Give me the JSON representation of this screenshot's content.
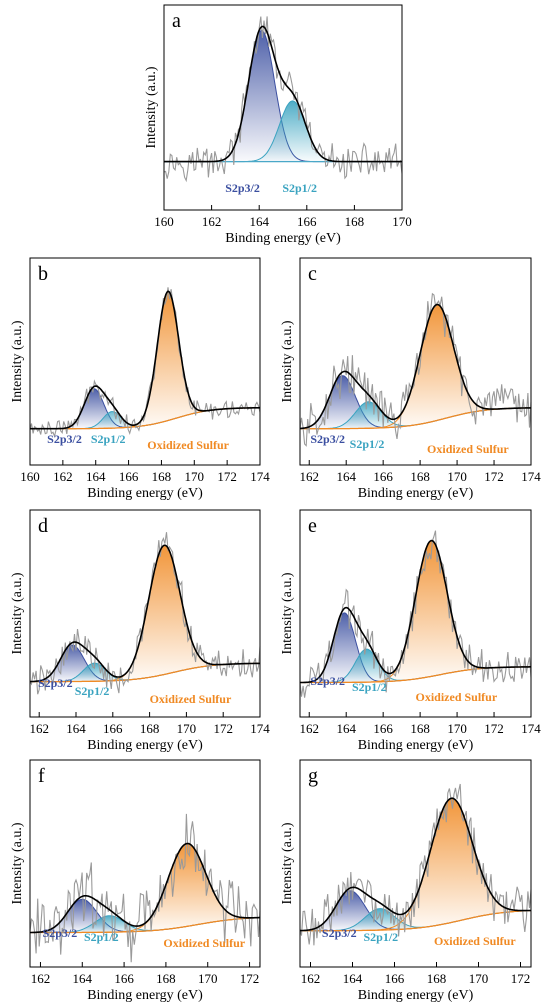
{
  "colors": {
    "raw": "#9a9a9a",
    "envelope": "#000000",
    "s2p32": "#3b4fa0",
    "s2p12": "#3aa3c0",
    "oxidized": "#f08a24",
    "baseline": "#4aa8c8"
  },
  "chart_data": [
    {
      "type": "line",
      "panel": "a",
      "xlabel": "Binding energy (eV)",
      "ylabel": "Intensity (a.u.)",
      "xlim": [
        160,
        170
      ],
      "xticks": [
        160,
        162,
        164,
        166,
        168,
        170
      ],
      "noise": 0.09,
      "baseline": 0.12,
      "series": [
        {
          "name": "S2p3/2",
          "center": 164.1,
          "height": 0.8,
          "width": 0.55
        },
        {
          "name": "S2p1/2",
          "center": 165.4,
          "height": 0.37,
          "width": 0.55
        }
      ],
      "labels": {
        "s2p32": "S2p3/2",
        "s2p12": "S2p1/2"
      }
    },
    {
      "type": "line",
      "panel": "b",
      "xlabel": "Binding energy (eV)",
      "ylabel": "Intensity (a.u.)",
      "xlim": [
        160,
        174
      ],
      "xticks": [
        160,
        162,
        164,
        166,
        168,
        170,
        172,
        174
      ],
      "noise": 0.05,
      "baseline": 0.08,
      "series": [
        {
          "name": "S2p3/2",
          "center": 163.9,
          "height": 0.24,
          "width": 0.6
        },
        {
          "name": "S2p1/2",
          "center": 165.0,
          "height": 0.1,
          "width": 0.55
        },
        {
          "name": "Oxidized Sulfur",
          "center": 168.4,
          "height": 0.78,
          "width": 0.65
        }
      ],
      "labels": {
        "s2p32": "S2p3/2",
        "s2p12": "S2p1/2",
        "oxidized": "Oxidized Sulfur"
      }
    },
    {
      "type": "line",
      "panel": "c",
      "xlabel": "Binding energy (eV)",
      "ylabel": "Intensity (a.u.)",
      "xlim": [
        161.5,
        174
      ],
      "xticks": [
        162,
        164,
        166,
        168,
        170,
        172,
        174
      ],
      "noise": 0.12,
      "baseline": 0.08,
      "series": [
        {
          "name": "S2p3/2",
          "center": 163.8,
          "height": 0.32,
          "width": 0.7
        },
        {
          "name": "S2p1/2",
          "center": 165.2,
          "height": 0.16,
          "width": 0.7
        },
        {
          "name": "Oxidized Sulfur",
          "center": 168.9,
          "height": 0.7,
          "width": 0.9
        }
      ],
      "labels": {
        "s2p32": "S2p3/2",
        "s2p12": "S2p1/2",
        "oxidized": "Oxidized Sulfur"
      }
    },
    {
      "type": "line",
      "panel": "d",
      "xlabel": "Binding energy (eV)",
      "ylabel": "Intensity (a.u.)",
      "xlim": [
        161.5,
        174
      ],
      "xticks": [
        162,
        164,
        166,
        168,
        170,
        172,
        174
      ],
      "noise": 0.09,
      "baseline": 0.07,
      "series": [
        {
          "name": "S2p3/2",
          "center": 163.8,
          "height": 0.22,
          "width": 0.65
        },
        {
          "name": "S2p1/2",
          "center": 165.0,
          "height": 0.11,
          "width": 0.6
        },
        {
          "name": "Oxidized Sulfur",
          "center": 168.8,
          "height": 0.78,
          "width": 0.85
        }
      ],
      "labels": {
        "s2p32": "S2p3/2",
        "s2p12": "S2p1/2",
        "oxidized": "Oxidized Sulfur"
      }
    },
    {
      "type": "line",
      "panel": "e",
      "xlabel": "Binding energy (eV)",
      "ylabel": "Intensity (a.u.)",
      "xlim": [
        161.5,
        174
      ],
      "xticks": [
        162,
        164,
        166,
        168,
        170,
        172,
        174
      ],
      "noise": 0.1,
      "baseline": 0.06,
      "series": [
        {
          "name": "S2p3/2",
          "center": 163.9,
          "height": 0.42,
          "width": 0.6
        },
        {
          "name": "S2p1/2",
          "center": 165.1,
          "height": 0.2,
          "width": 0.6
        },
        {
          "name": "Oxidized Sulfur",
          "center": 168.6,
          "height": 0.82,
          "width": 0.85
        }
      ],
      "labels": {
        "s2p32": "S2p3/2",
        "s2p12": "S2p1/2",
        "oxidized": "Oxidized Sulfur"
      }
    },
    {
      "type": "line",
      "panel": "f",
      "xlabel": "Binding energy (eV)",
      "ylabel": "Intensity (a.u.)",
      "xlim": [
        161.5,
        172.5
      ],
      "xticks": [
        162,
        164,
        166,
        168,
        170,
        172
      ],
      "noise": 0.18,
      "baseline": 0.06,
      "series": [
        {
          "name": "S2p3/2",
          "center": 164.0,
          "height": 0.2,
          "width": 0.7
        },
        {
          "name": "S2p1/2",
          "center": 165.3,
          "height": 0.1,
          "width": 0.7
        },
        {
          "name": "Oxidized Sulfur",
          "center": 169.0,
          "height": 0.5,
          "width": 0.9
        }
      ],
      "labels": {
        "s2p32": "S2p3/2",
        "s2p12": "S2p1/2",
        "oxidized": "Oxidized Sulfur"
      }
    },
    {
      "type": "line",
      "panel": "g",
      "xlabel": "Binding energy (eV)",
      "ylabel": "Intensity (a.u.)",
      "xlim": [
        161.5,
        172.5
      ],
      "xticks": [
        162,
        164,
        166,
        168,
        170,
        172
      ],
      "noise": 0.12,
      "baseline": 0.08,
      "series": [
        {
          "name": "S2p3/2",
          "center": 163.9,
          "height": 0.24,
          "width": 0.7
        },
        {
          "name": "S2p1/2",
          "center": 165.3,
          "height": 0.13,
          "width": 0.7
        },
        {
          "name": "Oxidized Sulfur",
          "center": 168.7,
          "height": 0.75,
          "width": 1.0
        }
      ],
      "labels": {
        "s2p32": "S2p3/2",
        "s2p12": "S2p1/2",
        "oxidized": "Oxidized Sulfur"
      }
    }
  ]
}
